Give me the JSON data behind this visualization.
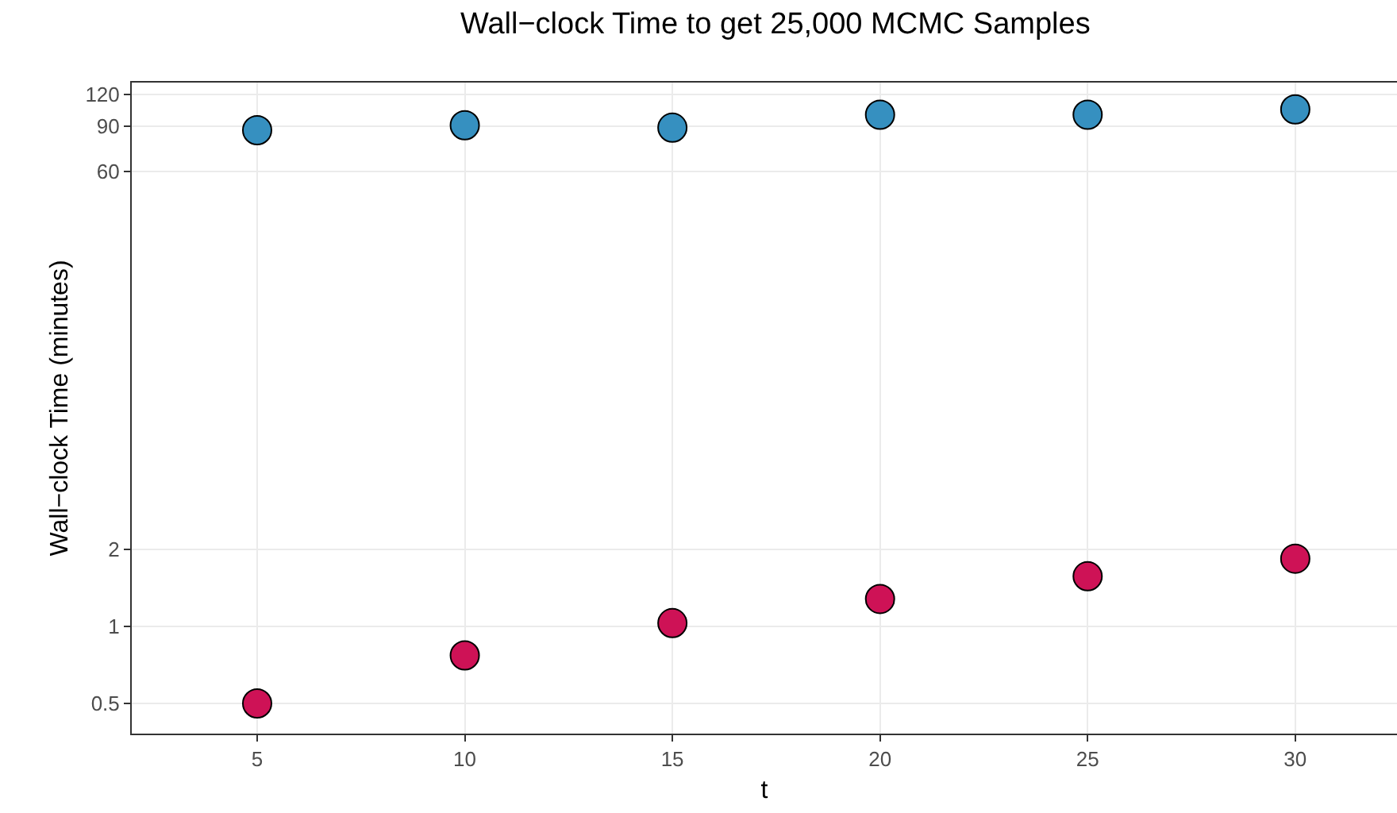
{
  "chart_data": {
    "type": "scatter",
    "title": "Wall−clock Time to get 25,000 MCMC Samples",
    "xlabel": "t",
    "ylabel": "Wall−clock Time (minutes)",
    "x": [
      5,
      10,
      15,
      20,
      25,
      30
    ],
    "series": [
      {
        "color": "#3690c0",
        "values": [
          87,
          91,
          89,
          100,
          100,
          105
        ]
      },
      {
        "color": "#ce1256",
        "values": [
          0.5,
          0.77,
          1.03,
          1.28,
          1.57,
          1.84
        ]
      }
    ],
    "log": "y",
    "xlim": [
      1.98,
      32.45
    ],
    "ylim": [
      0.381,
      133.6
    ],
    "xticks": [
      5,
      10,
      15,
      20,
      25,
      30
    ],
    "yticks": [
      0.5,
      1,
      2,
      60,
      90,
      120
    ],
    "grid": true,
    "marker": "circle"
  }
}
